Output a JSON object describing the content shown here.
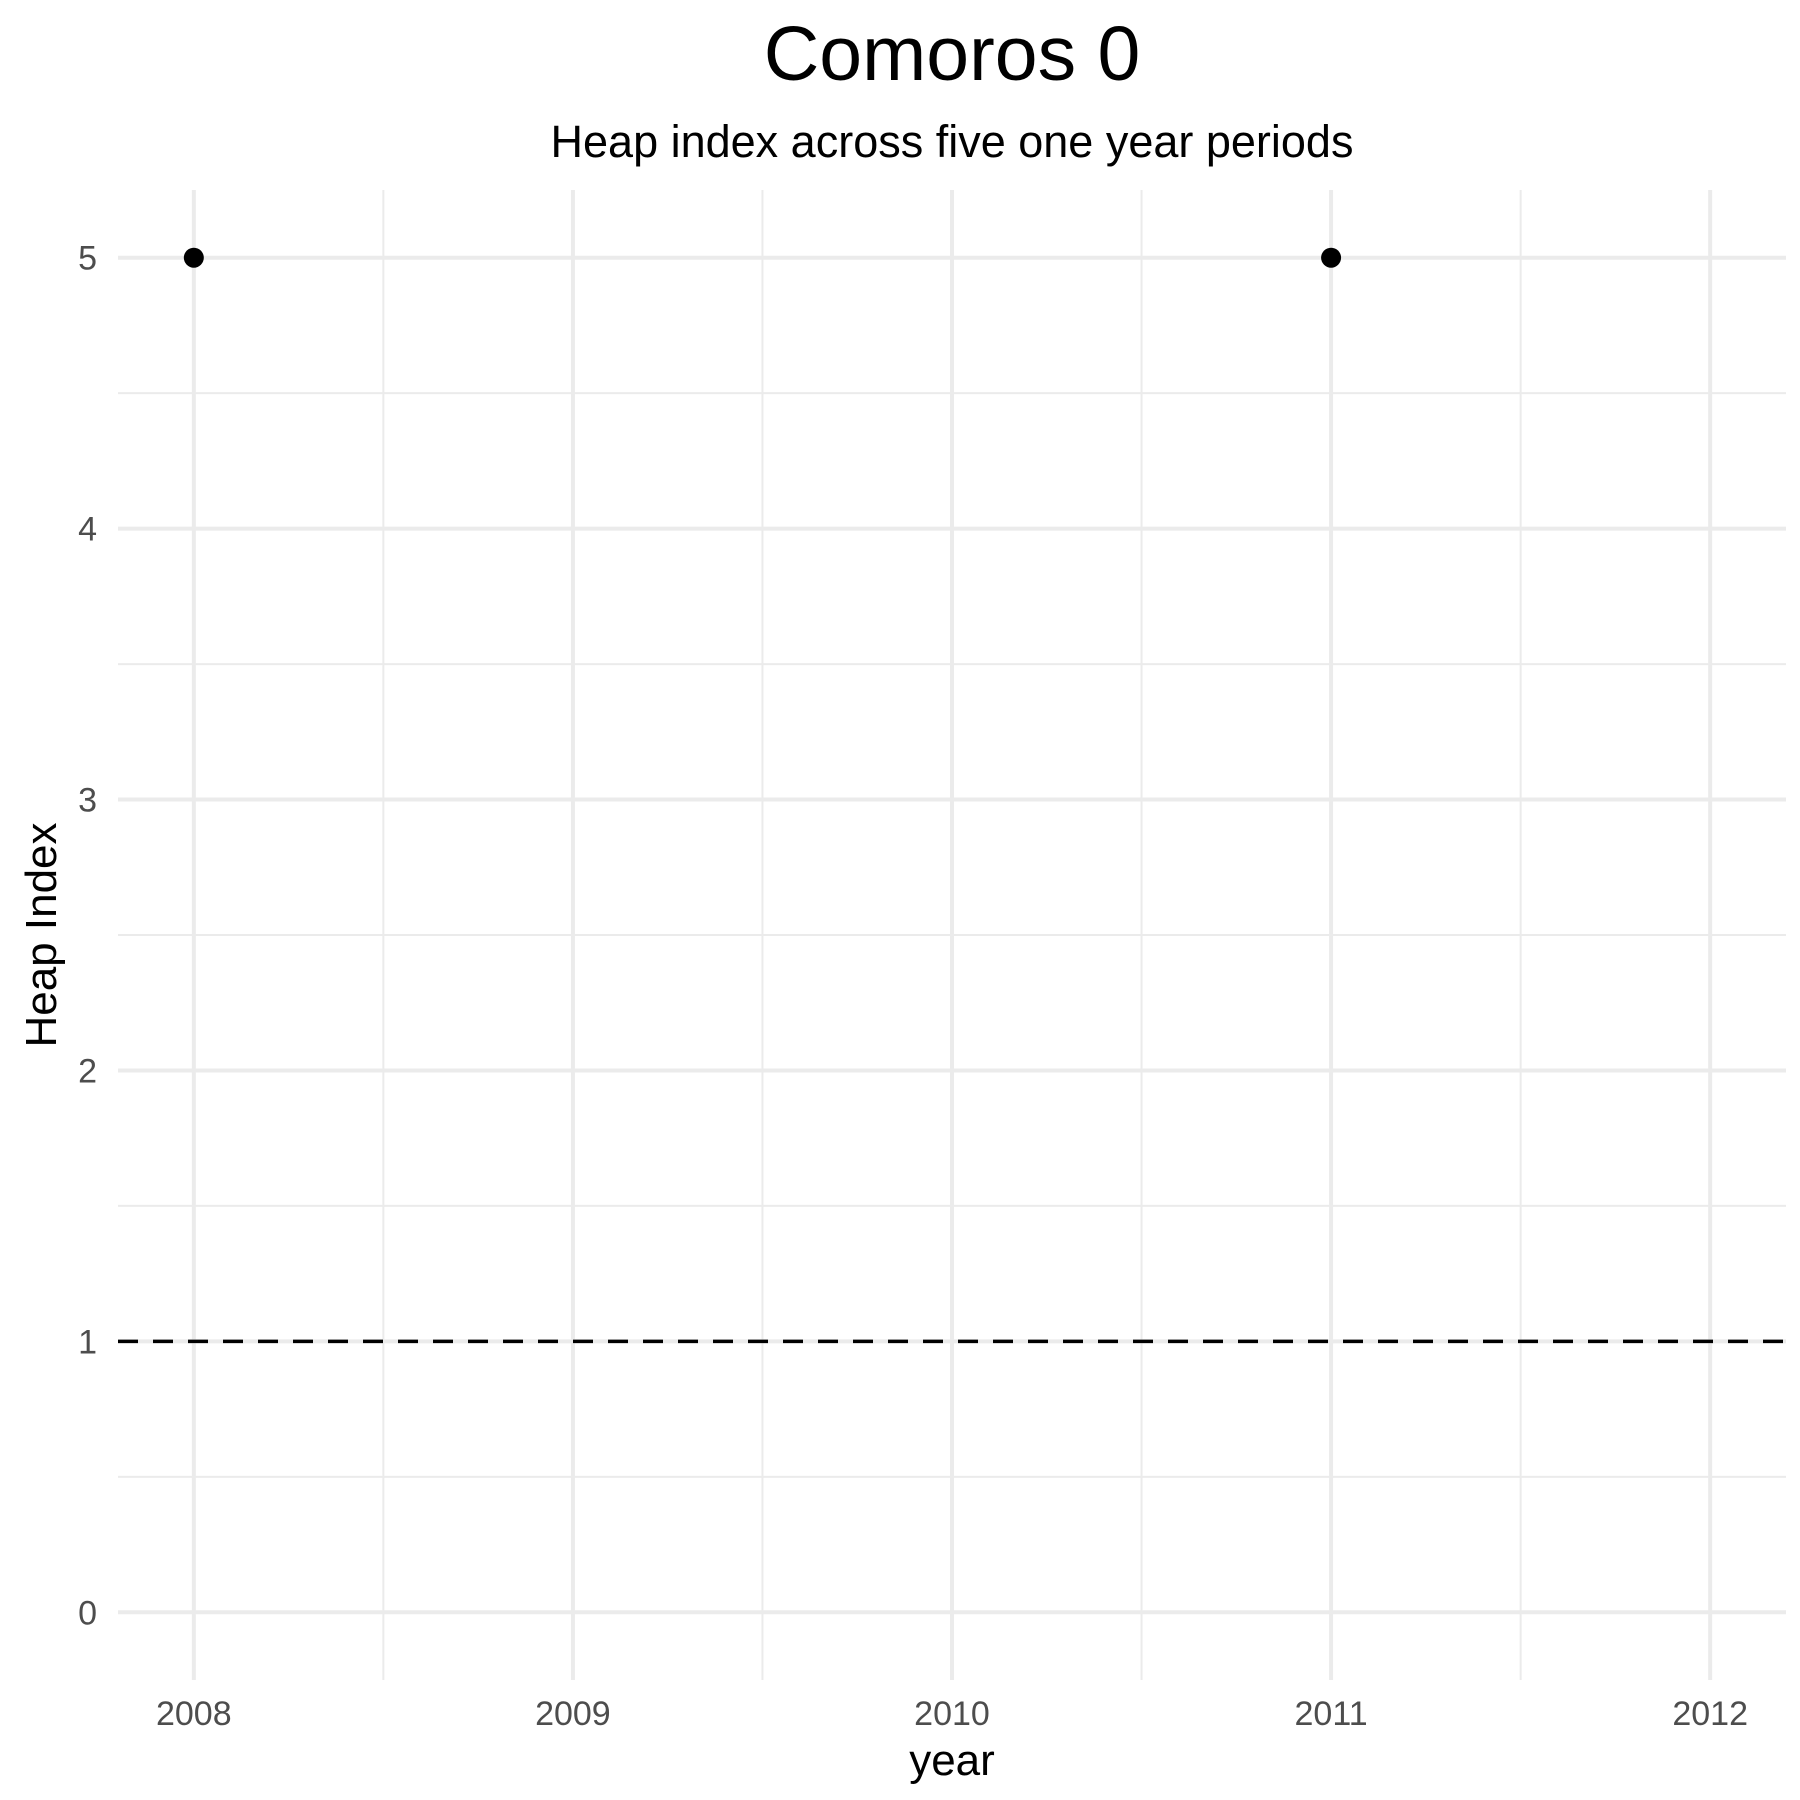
{
  "chart_data": {
    "type": "scatter",
    "title": "Comoros 0",
    "subtitle": "Heap index across five one year periods",
    "xlabel": "year",
    "ylabel": "Heap Index",
    "x_ticks": [
      "2008",
      "2009",
      "2010",
      "2011",
      "2012"
    ],
    "y_ticks": [
      "0",
      "1",
      "2",
      "3",
      "4",
      "5"
    ],
    "xlim": [
      2007.8,
      2012.2
    ],
    "ylim": [
      -0.25,
      5.25
    ],
    "grid": true,
    "points": [
      {
        "x": 2008,
        "y": 5
      },
      {
        "x": 2011,
        "y": 5
      }
    ],
    "reference_line": {
      "y": 1,
      "style": "dashed",
      "color": "#000000"
    },
    "point_color": "#000000"
  }
}
